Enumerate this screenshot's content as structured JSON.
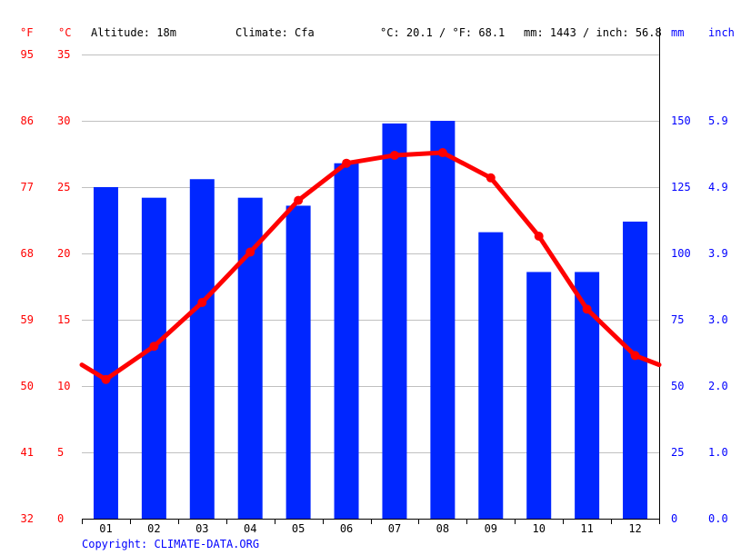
{
  "header": {
    "unit_f": "°F",
    "unit_c": "°C",
    "altitude": "Altitude: 18m",
    "climate": "Climate: Cfa",
    "temperature": "°C: 20.1 / °F: 68.1",
    "precipitation": "mm: 1443 / inch: 56.8",
    "unit_mm": "mm",
    "unit_inch": "inch"
  },
  "footer": {
    "copyright": "Copyright: CLIMATE-DATA.ORG"
  },
  "colors": {
    "temperature": "#ff0000",
    "precipitation": "#0026ff",
    "grid": "#c0c0c0"
  },
  "chart_data": {
    "type": "bar",
    "categories": [
      "01",
      "02",
      "03",
      "04",
      "05",
      "06",
      "07",
      "08",
      "09",
      "10",
      "11",
      "12"
    ],
    "series": [
      {
        "type": "bar",
        "axis": "right",
        "values": [
          125,
          121,
          128,
          121,
          118,
          134,
          149,
          150,
          108,
          93,
          93,
          112
        ]
      },
      {
        "type": "line",
        "axis": "left",
        "values": [
          10.5,
          13,
          16.3,
          20.1,
          24,
          26.8,
          27.4,
          27.6,
          25.7,
          21.3,
          15.8,
          12.3
        ]
      }
    ],
    "line_edge_values": {
      "start": 11.6,
      "end": 11.6
    },
    "left_axis_c": {
      "ticks": [
        0,
        5,
        10,
        15,
        20,
        25,
        30,
        35
      ],
      "ylim": [
        0,
        35
      ]
    },
    "left_axis_f": {
      "ticks": [
        32,
        41,
        50,
        59,
        68,
        77,
        86,
        95
      ]
    },
    "right_axis_mm": {
      "ticks": [
        0,
        25,
        50,
        75,
        100,
        125,
        150
      ],
      "ylim": [
        0,
        175
      ]
    },
    "right_axis_inch": {
      "ticks": [
        "0.0",
        "1.0",
        "2.0",
        "3.0",
        "3.9",
        "4.9",
        "5.9"
      ]
    },
    "grid": true
  }
}
